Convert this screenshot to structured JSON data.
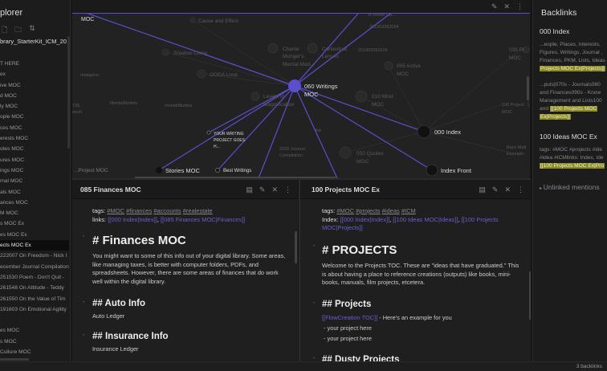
{
  "explorer": {
    "title": "plorer",
    "icons": [
      "new-note-icon",
      "new-folder-icon",
      "sort-icon"
    ],
    "vault": "brary_StarterKit_ICM_20",
    "items": [
      "T HERE",
      "ex",
      "ive MOC",
      "d MOC",
      "ly MOC",
      "ople MOC",
      "ces MOC",
      "erests MOC",
      "otes MOC",
      "ures MOC",
      "ings MOC",
      "rnal MOC",
      "als MOC",
      "ances MOC",
      "M MOC",
      "s MOC Ex",
      "es MOC Ex",
      "ects MOC Ex",
      "222007 On Freedom - Nick I",
      "ecember Journal Compilation",
      "251530 Poem - Don't Quit -",
      "261548 On Attitude - Teddy",
      "261550 On the Value of Tim",
      "191603 On Emotional Agility",
      "",
      "es MOC",
      "s MOC",
      "Culture MOC"
    ],
    "selected_index": 17
  },
  "graph": {
    "accent": "#5a4fcf",
    "center": "060 Writings MOC",
    "labels": {
      "moc": "MOC",
      "cause": "Cause and Effect",
      "shadow": "Shadow Clone",
      "ooda": "OODA Loop",
      "charlie1": "Charlie",
      "charlie2": "Munger's",
      "charlie3": "Mental Mod...",
      "ctx1": "Contextual",
      "ctx2": "Lenses",
      "id1": "201903291624",
      "id2": "201903282054",
      "monte": "of Monte Ca...",
      "active1": "005 Active",
      "active2": "MOC",
      "pi1": "035 PI",
      "pi2": "MOC",
      "c1": "060 Writings",
      "c2": "MOC",
      "mind1": "010 Mind",
      "mind2": "MOC",
      "levels1": "Levels of",
      "levels2": "Magnification",
      "metaphor": "metaphor",
      "mm1": "MentalModels",
      "mm2": "mentalModels",
      "e735a": "735",
      "e735b": "eech",
      "proj1": "100 Project",
      "proj2": "MOC",
      "yw1": "YOUR WRITING",
      "yw2": "PROJECT GOES",
      "yw3": "H...",
      "list": "list",
      "index": "000 Index",
      "jc1": "2020 Journal",
      "jc2": "Compilation",
      "q1": "050 Quotes",
      "q2": "MOC",
      "bm1": "Back Matt",
      "bm2": "Example",
      "stories": "Stories MOC",
      "best": "Best Writings",
      "front": "Index Front",
      "pmoc": "...Project MOC"
    }
  },
  "pane_left": {
    "title": "085 Finances MOC",
    "tags_label": "tags:",
    "tags": [
      "#MOC",
      "#finances",
      "#accounts",
      "#realestate"
    ],
    "links_label": "links:",
    "links": [
      "[[000 Index|Index]]",
      "[[085 Finances MOC|Finances]]"
    ],
    "h1": "# Finances MOC",
    "p1": "You might want to some of this info out of your digital library. Some areas, like managing taxes, is better with computer folders, PDFs, and spreadsheets. However, there are some areas of finances that do work well within the digital library.",
    "h2a": "## Auto Info",
    "ta": "Auto Ledger",
    "h2b": "## Insurance Info",
    "tb": "Insurance Ledger"
  },
  "pane_right": {
    "title": "100 Projects MOC Ex",
    "tags_label": "tags:",
    "tags": [
      "#MOC",
      "#projects",
      "#ideas",
      "#ICM"
    ],
    "index_label": "Index:",
    "links": [
      "[[000 Index|Index]]",
      "[[100 Ideas MOC|Ideas]]",
      "[[100 Projects MOC|Projects]]"
    ],
    "h1": "# PROJECTS",
    "p1": "Welcome to the Projects TOC. These are \"ideas that have graduated.\" This is about having a place to reference creations (outputs) like books, mini-books, manuals, film projects, etcetera.",
    "h2a": "## Projects",
    "li1_link": "[[FlowCreation TOC]]",
    "li1_text": " - Here's an example for you",
    "li2": "- your project here",
    "li3": "- your project here",
    "h2b": "## Dusty Projects"
  },
  "backlinks": {
    "title": "Backlinks",
    "r1": {
      "file": "000 Index",
      "s1": "...eople, Places, Interests,",
      "s2": "Figures, Writings, Journal ,",
      "s3": "Finances, PKM, Lists, Ideas",
      "s4": "Projects MOC Ex|Projects]]",
      "s5": "...puts|070s - Journals080",
      "s6": "and Finances090s - Know",
      "s7": "Management and Lists100",
      "s8pre": "and ",
      "s8": "[[100 Projects MOC",
      "s9": "Ex|Projects]]"
    },
    "r2": {
      "file": "100 Ideas MOC Ex",
      "s1": "tags: #MOC #projects #ide",
      "s2": "#idea #ICMlinks: Index, Ide",
      "s3": "[[100 Projects MOC Ex|Pro"
    },
    "unlinked": "Unlinked mentions"
  },
  "status": {
    "backlinks": "3 backlinks"
  }
}
